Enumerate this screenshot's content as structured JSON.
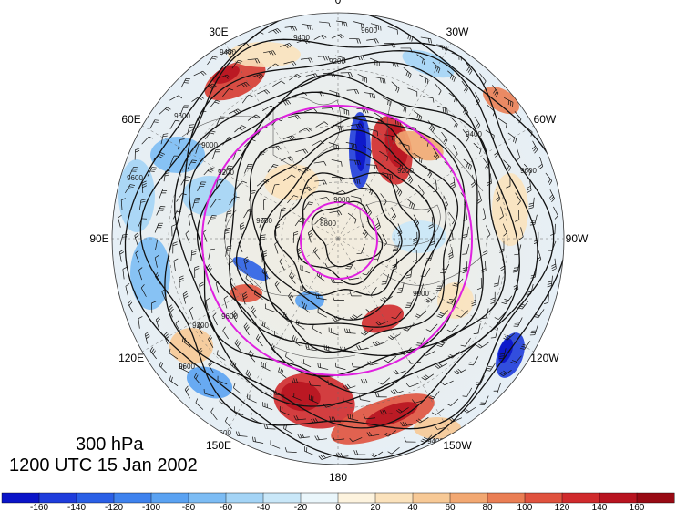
{
  "captions": {
    "level": "300 hPa",
    "time": "1200 UTC 15 Jan 2002"
  },
  "longitude_labels": [
    {
      "text": "0",
      "angle_deg": 0
    },
    {
      "text": "30W",
      "angle_deg": 30
    },
    {
      "text": "60W",
      "angle_deg": 60
    },
    {
      "text": "90W",
      "angle_deg": 90
    },
    {
      "text": "120W",
      "angle_deg": 120
    },
    {
      "text": "150W",
      "angle_deg": 150
    },
    {
      "text": "180",
      "angle_deg": 180
    },
    {
      "text": "150E",
      "angle_deg": 210
    },
    {
      "text": "120E",
      "angle_deg": 240
    },
    {
      "text": "90E",
      "angle_deg": 270
    },
    {
      "text": "60E",
      "angle_deg": 300
    },
    {
      "text": "30E",
      "angle_deg": 330
    }
  ],
  "contour_labels": [
    "9400",
    "9600",
    "9600",
    "9000",
    "9200",
    "9600",
    "9600",
    "8800",
    "9000",
    "9200",
    "9400",
    "9600",
    "9000",
    "9200",
    "9600",
    "9600",
    "9600",
    "9400",
    "9200",
    "9400"
  ],
  "colorbar": {
    "tick_labels": [
      "-160",
      "-140",
      "-120",
      "-100",
      "-80",
      "-60",
      "-40",
      "-20",
      "0",
      "20",
      "40",
      "60",
      "80",
      "100",
      "120",
      "140",
      "160"
    ],
    "colors": [
      "#0a14c8",
      "#1e3cdc",
      "#2a5fe6",
      "#3e82ee",
      "#5aa2f2",
      "#7cbcf4",
      "#a4d4f6",
      "#c9e7f8",
      "#eaf6fb",
      "#fdf3de",
      "#fbe2bc",
      "#f7c996",
      "#f2a872",
      "#ea7e54",
      "#e0523e",
      "#d02a2c",
      "#b81420",
      "#980a14"
    ]
  },
  "colors": {
    "magenta": "#e020e0",
    "contour": "#111111",
    "ocean_bg": "#e8f0f6"
  }
}
